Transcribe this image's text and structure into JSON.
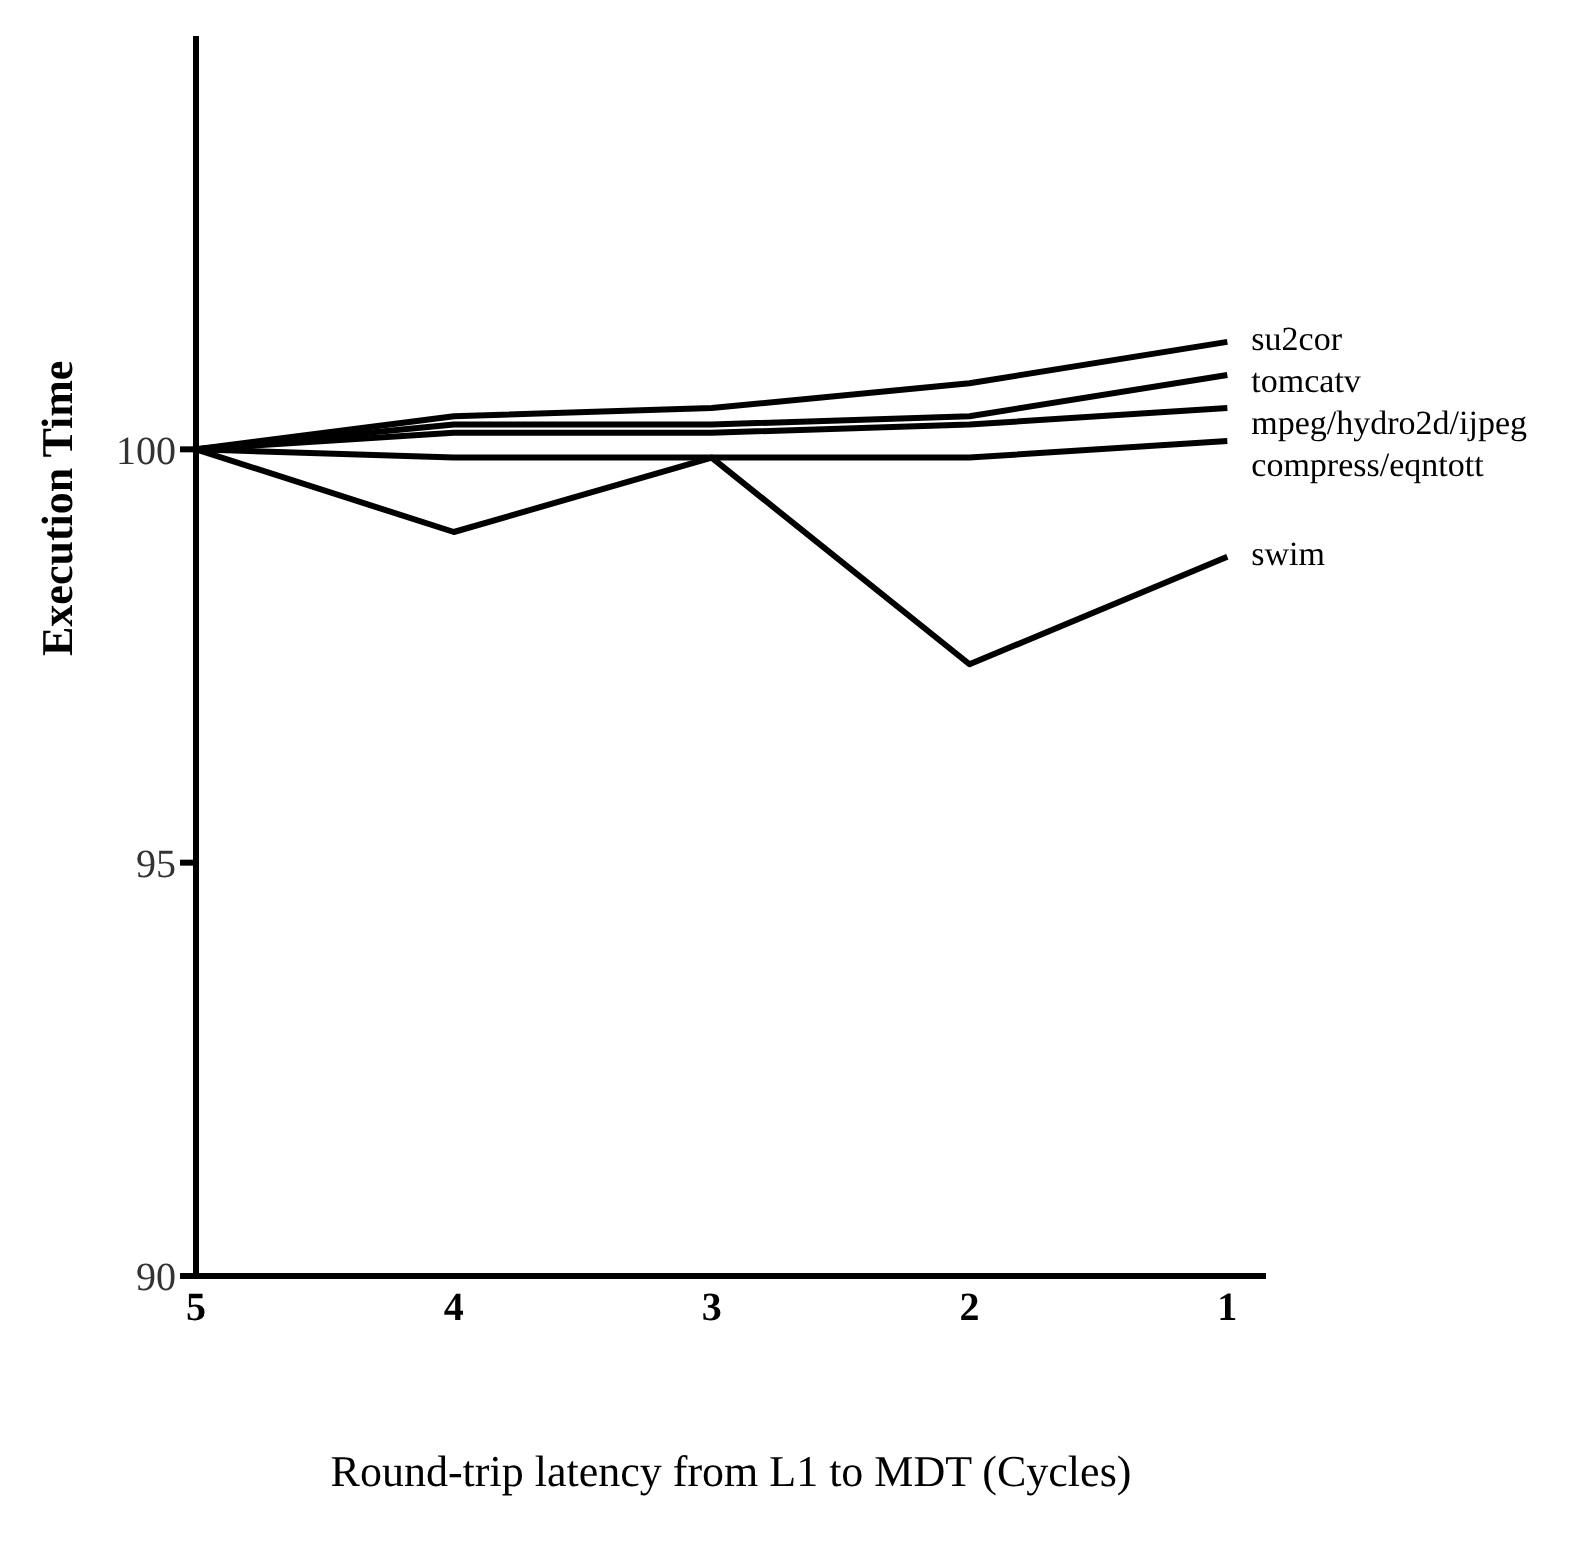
{
  "chart_data": {
    "type": "line",
    "xlabel": "Round-trip latency from L1 to MDT (Cycles)",
    "ylabel": "Execution  Time",
    "categories": [
      "5",
      "4",
      "3",
      "2",
      "1"
    ],
    "ylim": [
      90,
      105
    ],
    "yticks": [
      90,
      95,
      100
    ],
    "grid": false,
    "legend": false,
    "marker": "none",
    "line_style": "solid",
    "series": [
      {
        "name": "su2cor",
        "color": "#000000",
        "values": [
          100,
          100.4,
          100.5,
          100.8,
          101.3
        ]
      },
      {
        "name": "tomcatv",
        "color": "#000000",
        "values": [
          100,
          100.3,
          100.3,
          100.4,
          100.9
        ]
      },
      {
        "name": "mpeg/hydro2d/ijpeg",
        "color": "#000000",
        "values": [
          100,
          100.2,
          100.2,
          100.3,
          100.5
        ]
      },
      {
        "name": "compress/eqntott",
        "color": "#000000",
        "values": [
          100,
          99.9,
          99.9,
          99.9,
          100.1
        ]
      },
      {
        "name": "swim",
        "color": "#000000",
        "values": [
          100,
          99,
          99.9,
          97.4,
          98.7
        ]
      }
    ]
  }
}
